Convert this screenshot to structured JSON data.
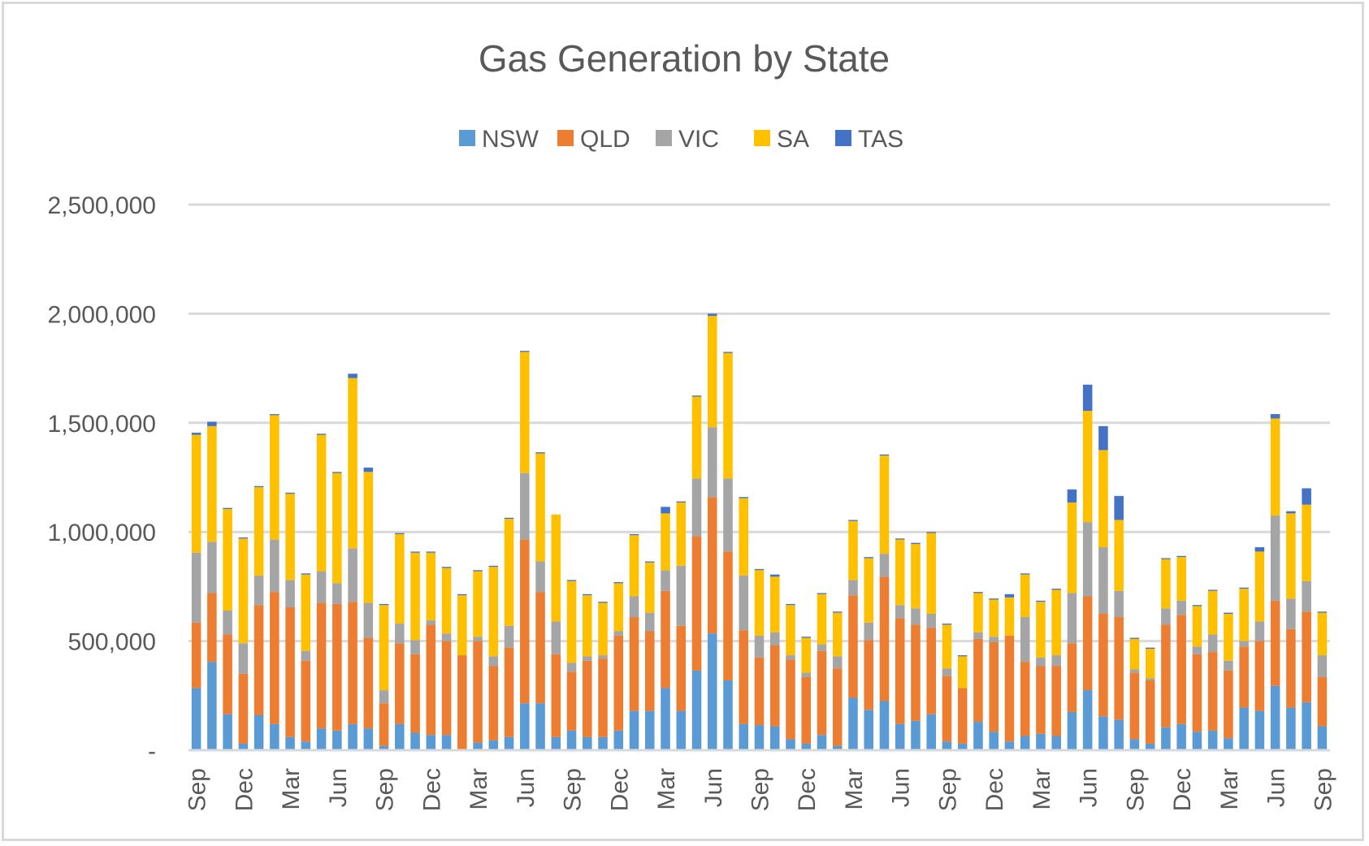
{
  "chart_data": {
    "type": "bar",
    "stacked": true,
    "title": "Gas Generation by State",
    "xlabel": "",
    "ylabel": "",
    "ylim": [
      0,
      2500000
    ],
    "y_ticks": [
      {
        "value": 0,
        "label": "-"
      },
      {
        "value": 500000,
        "label": "500,000"
      },
      {
        "value": 1000000,
        "label": "1,000,000"
      },
      {
        "value": 1500000,
        "label": "1,500,000"
      },
      {
        "value": 2000000,
        "label": "2,000,000"
      },
      {
        "value": 2500000,
        "label": "2,500,000"
      }
    ],
    "grid": true,
    "legend_position": "top",
    "x_tick_labels": [
      {
        "index": 0,
        "label": "Sep"
      },
      {
        "index": 3,
        "label": "Dec"
      },
      {
        "index": 6,
        "label": "Mar"
      },
      {
        "index": 9,
        "label": "Jun"
      },
      {
        "index": 12,
        "label": "Sep"
      },
      {
        "index": 15,
        "label": "Dec"
      },
      {
        "index": 18,
        "label": "Mar"
      },
      {
        "index": 21,
        "label": "Jun"
      },
      {
        "index": 24,
        "label": "Sep"
      },
      {
        "index": 27,
        "label": "Dec"
      },
      {
        "index": 30,
        "label": "Mar"
      },
      {
        "index": 33,
        "label": "Jun"
      },
      {
        "index": 36,
        "label": "Sep"
      },
      {
        "index": 39,
        "label": "Dec"
      },
      {
        "index": 42,
        "label": "Mar"
      },
      {
        "index": 45,
        "label": "Jun"
      },
      {
        "index": 48,
        "label": "Sep"
      },
      {
        "index": 51,
        "label": "Dec"
      },
      {
        "index": 54,
        "label": "Mar"
      },
      {
        "index": 57,
        "label": "Jun"
      },
      {
        "index": 60,
        "label": "Sep"
      },
      {
        "index": 63,
        "label": "Dec"
      },
      {
        "index": 66,
        "label": "Mar"
      },
      {
        "index": 69,
        "label": "Jun"
      },
      {
        "index": 72,
        "label": "Sep"
      }
    ],
    "series": [
      {
        "name": "NSW",
        "color": "#5b9bd5",
        "values": [
          285000,
          405000,
          165000,
          30000,
          160000,
          120000,
          60000,
          40000,
          100000,
          90000,
          120000,
          100000,
          20000,
          120000,
          80000,
          70000,
          70000,
          5000,
          35000,
          45000,
          60000,
          215000,
          215000,
          60000,
          90000,
          60000,
          60000,
          90000,
          180000,
          180000,
          285000,
          180000,
          365000,
          535000,
          320000,
          120000,
          115000,
          110000,
          50000,
          30000,
          70000,
          20000,
          240000,
          185000,
          225000,
          120000,
          135000,
          165000,
          40000,
          30000,
          130000,
          85000,
          40000,
          65000,
          75000,
          65000,
          175000,
          275000,
          155000,
          140000,
          50000,
          30000,
          105000,
          120000,
          85000,
          90000,
          55000,
          195000,
          180000,
          295000,
          195000,
          220000,
          110000
        ]
      },
      {
        "name": "QLD",
        "color": "#ed7d31",
        "values": [
          300000,
          315000,
          365000,
          320000,
          505000,
          605000,
          595000,
          370000,
          575000,
          580000,
          560000,
          415000,
          195000,
          370000,
          360000,
          505000,
          430000,
          430000,
          465000,
          340000,
          410000,
          750000,
          510000,
          380000,
          270000,
          350000,
          360000,
          435000,
          430000,
          365000,
          445000,
          390000,
          615000,
          625000,
          590000,
          430000,
          310000,
          370000,
          365000,
          305000,
          385000,
          355000,
          470000,
          320000,
          570000,
          485000,
          440000,
          395000,
          300000,
          255000,
          380000,
          410000,
          485000,
          340000,
          310000,
          320000,
          315000,
          430000,
          470000,
          470000,
          305000,
          290000,
          470000,
          500000,
          355000,
          360000,
          310000,
          280000,
          320000,
          390000,
          360000,
          415000,
          225000
        ]
      },
      {
        "name": "VIC",
        "color": "#a5a5a5",
        "values": [
          320000,
          235000,
          110000,
          140000,
          135000,
          240000,
          125000,
          45000,
          145000,
          95000,
          245000,
          160000,
          60000,
          90000,
          65000,
          20000,
          35000,
          0,
          20000,
          45000,
          100000,
          305000,
          140000,
          150000,
          40000,
          20000,
          15000,
          20000,
          95000,
          85000,
          95000,
          275000,
          265000,
          320000,
          335000,
          250000,
          100000,
          60000,
          20000,
          20000,
          30000,
          55000,
          70000,
          80000,
          105000,
          60000,
          75000,
          65000,
          35000,
          0,
          30000,
          25000,
          0,
          205000,
          40000,
          50000,
          230000,
          340000,
          305000,
          120000,
          15000,
          10000,
          75000,
          65000,
          35000,
          80000,
          45000,
          25000,
          90000,
          390000,
          140000,
          140000,
          100000
        ]
      },
      {
        "name": "SA",
        "color": "#ffc000",
        "values": [
          540000,
          530000,
          465000,
          480000,
          405000,
          570000,
          395000,
          350000,
          625000,
          505000,
          780000,
          600000,
          390000,
          410000,
          400000,
          310000,
          300000,
          275000,
          300000,
          410000,
          490000,
          555000,
          495000,
          490000,
          375000,
          280000,
          240000,
          220000,
          280000,
          230000,
          260000,
          290000,
          375000,
          510000,
          575000,
          355000,
          300000,
          255000,
          230000,
          160000,
          230000,
          200000,
          270000,
          295000,
          450000,
          300000,
          295000,
          370000,
          200000,
          145000,
          180000,
          170000,
          175000,
          195000,
          255000,
          300000,
          415000,
          510000,
          445000,
          325000,
          140000,
          135000,
          225000,
          200000,
          185000,
          200000,
          215000,
          240000,
          320000,
          445000,
          390000,
          350000,
          195000
        ]
      },
      {
        "name": "TAS",
        "color": "#4472c4",
        "values": [
          10000,
          20000,
          5000,
          5000,
          5000,
          5000,
          5000,
          5000,
          5000,
          5000,
          20000,
          20000,
          5000,
          5000,
          5000,
          5000,
          5000,
          5000,
          5000,
          5000,
          5000,
          5000,
          5000,
          0,
          5000,
          5000,
          5000,
          5000,
          5000,
          5000,
          30000,
          5000,
          5000,
          10000,
          5000,
          5000,
          5000,
          10000,
          5000,
          5000,
          5000,
          5000,
          5000,
          5000,
          5000,
          5000,
          5000,
          5000,
          5000,
          5000,
          5000,
          5000,
          15000,
          5000,
          5000,
          5000,
          60000,
          120000,
          110000,
          110000,
          5000,
          5000,
          5000,
          5000,
          5000,
          5000,
          5000,
          5000,
          20000,
          20000,
          10000,
          75000,
          5000
        ]
      }
    ]
  }
}
